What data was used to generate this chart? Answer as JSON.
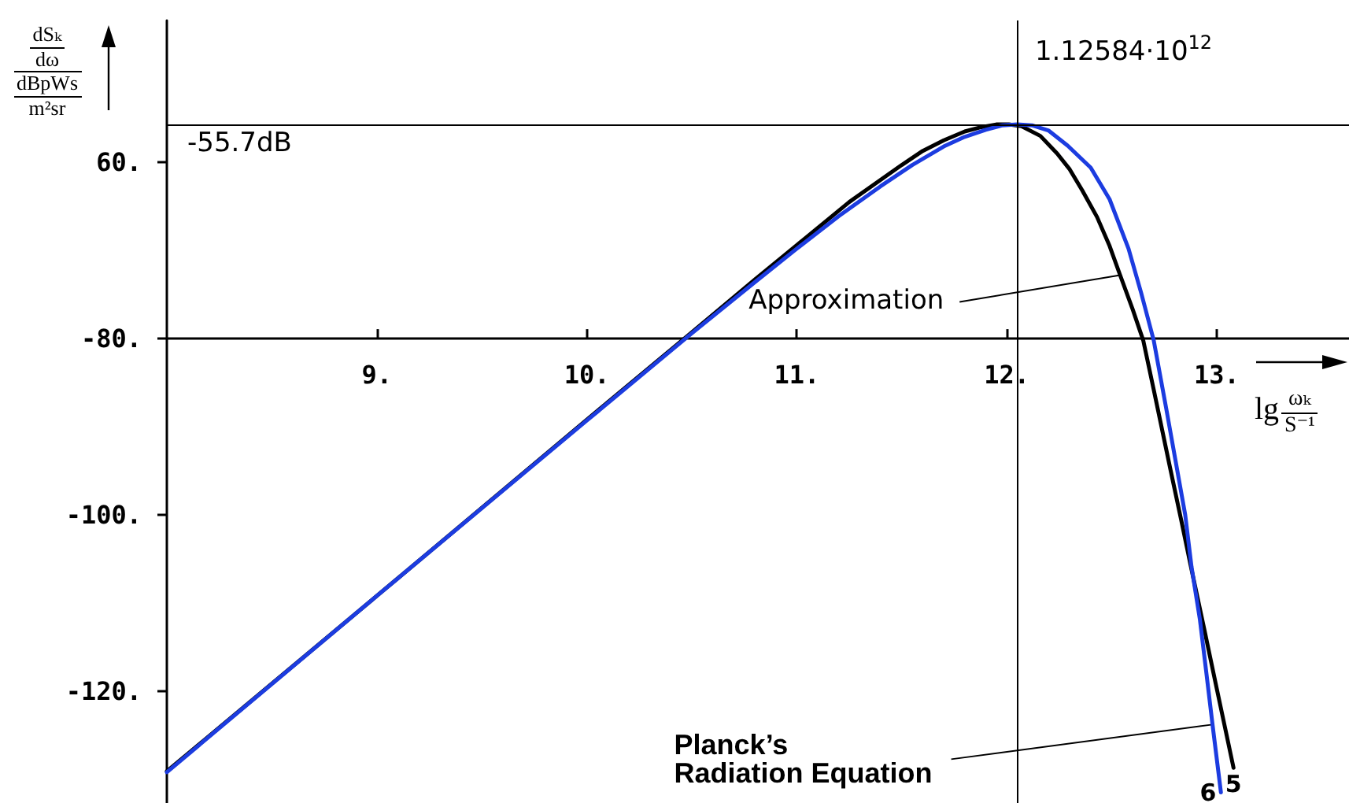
{
  "chart_data": {
    "type": "line",
    "xlabel": "lg ωₖ\nS⁻¹",
    "ylabel": "dSₖ\ndω\ndBpWs\nm²sr",
    "series": [
      {
        "name": "5",
        "color": "#000000",
        "x": [
          8,
          9,
          10,
          10.5,
          10.8,
          11,
          11.25,
          11.5,
          11.6,
          11.7,
          11.8,
          11.88,
          11.95,
          12.01,
          12.07,
          12.16,
          12.24,
          12.3,
          12.36,
          12.43,
          12.49,
          12.54,
          12.6,
          12.65,
          12.7,
          12.78,
          12.83,
          12.88,
          12.94,
          13.0,
          13.04,
          13.08
        ],
        "values": [
          -129.1,
          -109.2,
          -89.2,
          -79.3,
          -73.3,
          -69.4,
          -64.5,
          -60.3,
          -58.7,
          -57.5,
          -56.5,
          -56.0,
          -55.7,
          -55.7,
          -55.9,
          -57.0,
          -59.0,
          -60.8,
          -63.2,
          -66.2,
          -69.5,
          -72.8,
          -76.7,
          -80.2,
          -85.8,
          -94.9,
          -100.5,
          -106.2,
          -112.9,
          -119.7,
          -124.2,
          -128.7
        ]
      },
      {
        "name": "6",
        "color": "#1c3ce0",
        "x": [
          8,
          9,
          10,
          10.5,
          10.8,
          11,
          11.2,
          11.4,
          11.55,
          11.7,
          11.8,
          11.9,
          11.98,
          12.05,
          12.12,
          12.2,
          12.29,
          12.4,
          12.49,
          12.58,
          12.64,
          12.7,
          12.76,
          12.85,
          12.88,
          12.92,
          12.95,
          12.98,
          13.02
        ],
        "values": [
          -129.2,
          -109.2,
          -89.3,
          -79.4,
          -73.6,
          -69.8,
          -66.1,
          -62.7,
          -60.3,
          -58.2,
          -57.1,
          -56.3,
          -55.8,
          -55.7,
          -55.8,
          -56.4,
          -58.1,
          -60.6,
          -64.2,
          -69.8,
          -74.8,
          -80.2,
          -88.0,
          -100.0,
          -105.9,
          -111.9,
          -117.8,
          -123.8,
          -131.5
        ]
      }
    ],
    "xlim": [
      8,
      13.63
    ],
    "ylim": [
      -132.7,
      -43.9
    ],
    "xticks": [
      {
        "value": 9,
        "label": "9."
      },
      {
        "value": 10,
        "label": "10."
      },
      {
        "value": 11,
        "label": "11."
      },
      {
        "value": 12,
        "label": "12."
      },
      {
        "value": 13,
        "label": "13."
      }
    ],
    "yticks": [
      {
        "value": -60,
        "label": "60."
      },
      {
        "value": -80,
        "label": "-80."
      },
      {
        "value": -100,
        "label": "-100."
      },
      {
        "value": -120,
        "label": "-120."
      }
    ],
    "ref_lines": [
      {
        "axis": "y",
        "value": -55.7,
        "label": "-55.7dB"
      },
      {
        "axis": "x",
        "value": 12.0515,
        "label": "1.12584·10$^{12}$"
      }
    ],
    "annotations": [
      {
        "text": "Approximation",
        "x": 12.54,
        "y": -72.8
      },
      {
        "text": "Planck’s\nRadiation Equation",
        "x": 12.98,
        "y": -123.8
      }
    ]
  }
}
